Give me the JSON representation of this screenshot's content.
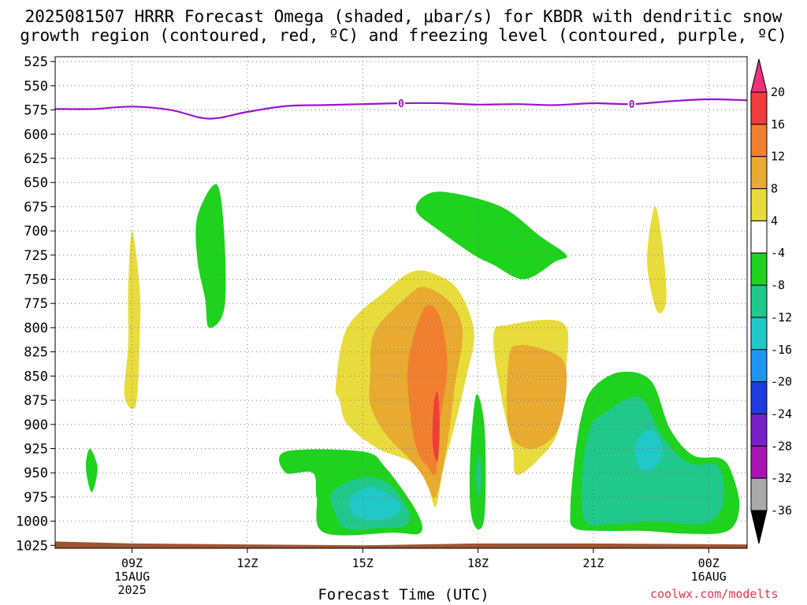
{
  "chart_data": {
    "type": "heatmap",
    "title_line1": "2025081507 HRRR Forecast Omega (shaded, μbar/s) for KBDR with dendritic snow",
    "title_line2": "growth region (contoured, red, ºC) and freezing level (contoured, purple, ºC)",
    "xlabel": "Forecast Time (UTC)",
    "credit": "coolwx.com/modelts",
    "x_range_hours": [
      7,
      25
    ],
    "y_range_hPa": [
      520,
      1028
    ],
    "y_ticks": [
      525,
      550,
      575,
      600,
      625,
      650,
      675,
      700,
      725,
      750,
      775,
      800,
      825,
      850,
      875,
      900,
      925,
      950,
      975,
      1000,
      1025
    ],
    "x_ticks": [
      {
        "hour": 9,
        "lines": [
          "09Z",
          "15AUG",
          "2025"
        ]
      },
      {
        "hour": 12,
        "lines": [
          "12Z"
        ]
      },
      {
        "hour": 15,
        "lines": [
          "15Z"
        ]
      },
      {
        "hour": 18,
        "lines": [
          "18Z"
        ]
      },
      {
        "hour": 21,
        "lines": [
          "21Z"
        ]
      },
      {
        "hour": 24,
        "lines": [
          "00Z",
          "16AUG"
        ]
      }
    ],
    "colorbar": {
      "labels": [
        "20",
        "16",
        "12",
        "8",
        "4",
        "-4",
        "-8",
        "-12",
        "-16",
        "-20",
        "-24",
        "-28",
        "-32",
        "-36"
      ],
      "colors": [
        "#f0307a",
        "#f03c3c",
        "#f08030",
        "#e8aa30",
        "#e8dc3c",
        "#ffffff",
        "#1ed21e",
        "#20c88c",
        "#20c8c8",
        "#1e96f0",
        "#1e3cdc",
        "#7820c8",
        "#aa14b4",
        "#aaaaaa",
        "#000000"
      ]
    },
    "legend_placement": "right",
    "grid": true,
    "colors": {
      "freezing_level": "#9a14c8",
      "ground": "#a0522d",
      "up_4_8": "#e8dc3c",
      "up_8_12": "#e8aa30",
      "up_12_16": "#f08030",
      "up_16_20": "#f03c3c",
      "down_4_8": "#1ed21e",
      "down_8_12": "#20c88c",
      "down_12_16": "#20c8c8"
    },
    "freezing_level": {
      "label": "0",
      "points": [
        [
          7,
          574
        ],
        [
          8,
          574
        ],
        [
          9,
          571.5
        ],
        [
          10,
          575
        ],
        [
          11,
          584
        ],
        [
          12,
          577
        ],
        [
          13,
          571
        ],
        [
          14,
          570
        ],
        [
          15,
          569
        ],
        [
          16,
          568
        ],
        [
          17,
          568
        ],
        [
          18,
          569.5
        ],
        [
          19,
          569
        ],
        [
          20,
          570
        ],
        [
          21,
          568
        ],
        [
          22,
          569
        ],
        [
          23,
          566
        ],
        [
          24,
          564
        ],
        [
          25,
          565
        ]
      ],
      "label_hours": [
        16,
        22
      ]
    },
    "ground_hPa": [
      [
        7,
        1021
      ],
      [
        9,
        1023
      ],
      [
        12,
        1024
      ],
      [
        15,
        1025
      ],
      [
        18,
        1023
      ],
      [
        21,
        1023
      ],
      [
        25,
        1024
      ]
    ],
    "regions": [
      {
        "name": "up-09z",
        "color_key": "up_4_8",
        "points": [
          [
            8.8,
            870
          ],
          [
            8.9,
            818
          ],
          [
            8.9,
            760
          ],
          [
            9.0,
            700
          ],
          [
            9.2,
            760
          ],
          [
            9.2,
            810
          ],
          [
            9.1,
            880
          ]
        ]
      },
      {
        "name": "down-11z",
        "color_key": "down_4_8",
        "points": [
          [
            10.7,
            685
          ],
          [
            11.2,
            652
          ],
          [
            11.4,
            705
          ],
          [
            11.4,
            780
          ],
          [
            11.0,
            800
          ],
          [
            10.9,
            770
          ],
          [
            10.7,
            730
          ]
        ]
      },
      {
        "name": "down-8z",
        "color_key": "down_4_8",
        "points": [
          [
            7.9,
            925
          ],
          [
            8.1,
            945
          ],
          [
            7.95,
            970
          ],
          [
            7.8,
            945
          ]
        ]
      },
      {
        "name": "down-15z-outer",
        "color_key": "down_4_8",
        "points": [
          [
            13.0,
            928
          ],
          [
            15.0,
            928
          ],
          [
            15.6,
            945
          ],
          [
            16.4,
            990
          ],
          [
            16.5,
            1012
          ],
          [
            15.8,
            1012
          ],
          [
            14.0,
            1012
          ],
          [
            13.8,
            975
          ],
          [
            13.7,
            950
          ],
          [
            13.0,
            950
          ]
        ]
      },
      {
        "name": "down-15z-mid",
        "color_key": "down_8_12",
        "points": [
          [
            14.2,
            970
          ],
          [
            15.0,
            955
          ],
          [
            15.7,
            962
          ],
          [
            16.2,
            990
          ],
          [
            16.1,
            1005
          ],
          [
            15.5,
            1007
          ],
          [
            14.6,
            1008
          ],
          [
            14.3,
            993
          ]
        ]
      },
      {
        "name": "down-15z-core",
        "color_key": "down_12_16",
        "points": [
          [
            14.7,
            975
          ],
          [
            15.2,
            965
          ],
          [
            15.8,
            975
          ],
          [
            16.0,
            988
          ],
          [
            15.6,
            998
          ],
          [
            15.0,
            998
          ],
          [
            14.7,
            990
          ]
        ]
      },
      {
        "name": "up-17z-outer",
        "color_key": "up_4_8",
        "points": [
          [
            14.3,
            860
          ],
          [
            14.6,
            800
          ],
          [
            15.6,
            762
          ],
          [
            16.3,
            742
          ],
          [
            16.9,
            745
          ],
          [
            17.5,
            762
          ],
          [
            17.9,
            805
          ],
          [
            17.7,
            850
          ],
          [
            17.4,
            900
          ],
          [
            17.1,
            945
          ],
          [
            16.9,
            985
          ],
          [
            16.7,
            965
          ],
          [
            16.3,
            940
          ],
          [
            15.4,
            925
          ],
          [
            14.6,
            900
          ],
          [
            14.4,
            875
          ]
        ]
      },
      {
        "name": "up-17z-mid",
        "color_key": "up_8_12",
        "points": [
          [
            15.2,
            850
          ],
          [
            15.3,
            805
          ],
          [
            16.1,
            770
          ],
          [
            16.6,
            758
          ],
          [
            17.3,
            775
          ],
          [
            17.6,
            805
          ],
          [
            17.4,
            860
          ],
          [
            17.2,
            920
          ],
          [
            16.9,
            975
          ],
          [
            16.6,
            955
          ],
          [
            16.2,
            935
          ],
          [
            15.6,
            910
          ],
          [
            15.2,
            880
          ]
        ]
      },
      {
        "name": "up-17z-inner",
        "color_key": "up_12_16",
        "points": [
          [
            16.2,
            832
          ],
          [
            16.6,
            780
          ],
          [
            17.0,
            788
          ],
          [
            17.2,
            840
          ],
          [
            17.0,
            900
          ],
          [
            16.9,
            950
          ],
          [
            16.7,
            944
          ],
          [
            16.4,
            925
          ],
          [
            16.2,
            875
          ]
        ]
      },
      {
        "name": "up-17z-core",
        "color_key": "up_16_20",
        "points": [
          [
            16.85,
            880
          ],
          [
            16.95,
            867
          ],
          [
            17.0,
            900
          ],
          [
            16.95,
            938
          ],
          [
            16.82,
            920
          ]
        ]
      },
      {
        "name": "down-18z-outer",
        "color_key": "down_4_8",
        "points": [
          [
            17.8,
            930
          ],
          [
            17.95,
            870
          ],
          [
            18.15,
            895
          ],
          [
            18.2,
            950
          ],
          [
            18.15,
            1000
          ],
          [
            17.95,
            1007
          ],
          [
            17.8,
            985
          ]
        ]
      },
      {
        "name": "down-18z-core",
        "color_key": "down_8_12",
        "points": [
          [
            17.97,
            940
          ],
          [
            18.05,
            932
          ],
          [
            18.08,
            962
          ],
          [
            18.0,
            974
          ],
          [
            17.95,
            955
          ]
        ]
      },
      {
        "name": "up-19z-outer",
        "color_key": "up_4_8",
        "points": [
          [
            18.4,
            808
          ],
          [
            18.8,
            797
          ],
          [
            20.2,
            795
          ],
          [
            20.3,
            840
          ],
          [
            20.1,
            905
          ],
          [
            19.6,
            935
          ],
          [
            19.0,
            952
          ],
          [
            18.9,
            925
          ],
          [
            18.6,
            870
          ]
        ]
      },
      {
        "name": "up-19z-core",
        "color_key": "up_8_12",
        "points": [
          [
            18.8,
            832
          ],
          [
            19.1,
            818
          ],
          [
            20.0,
            827
          ],
          [
            20.3,
            845
          ],
          [
            20.2,
            890
          ],
          [
            19.9,
            915
          ],
          [
            19.3,
            925
          ],
          [
            18.8,
            905
          ]
        ]
      },
      {
        "name": "down-19z",
        "color_key": "down_4_8",
        "points": [
          [
            16.4,
            680
          ],
          [
            16.6,
            664
          ],
          [
            17.2,
            660
          ],
          [
            18.6,
            675
          ],
          [
            19.6,
            705
          ],
          [
            20.3,
            725
          ],
          [
            20.0,
            732
          ],
          [
            19.2,
            750
          ],
          [
            18.4,
            735
          ],
          [
            17.9,
            725
          ],
          [
            17.0,
            700
          ]
        ]
      },
      {
        "name": "up-22z",
        "color_key": "up_4_8",
        "points": [
          [
            22.4,
            725
          ],
          [
            22.6,
            675
          ],
          [
            22.8,
            715
          ],
          [
            22.9,
            770
          ],
          [
            22.7,
            785
          ],
          [
            22.5,
            762
          ]
        ]
      },
      {
        "name": "down-22z-outer",
        "color_key": "down_4_8",
        "points": [
          [
            20.4,
            990
          ],
          [
            20.5,
            940
          ],
          [
            20.7,
            890
          ],
          [
            21.0,
            862
          ],
          [
            21.7,
            846
          ],
          [
            22.5,
            855
          ],
          [
            23.0,
            905
          ],
          [
            23.6,
            932
          ],
          [
            24.3,
            935
          ],
          [
            24.6,
            950
          ],
          [
            24.8,
            985
          ],
          [
            24.5,
            1010
          ],
          [
            23.5,
            1013
          ],
          [
            22.3,
            1010
          ],
          [
            21.2,
            1010
          ],
          [
            20.5,
            1007
          ]
        ]
      },
      {
        "name": "down-22z-mid",
        "color_key": "down_8_12",
        "points": [
          [
            20.7,
            958
          ],
          [
            20.9,
            905
          ],
          [
            21.3,
            888
          ],
          [
            22.2,
            872
          ],
          [
            22.8,
            913
          ],
          [
            23.5,
            940
          ],
          [
            24.2,
            942
          ],
          [
            24.4,
            965
          ],
          [
            24.3,
            990
          ],
          [
            23.8,
            1003
          ],
          [
            22.6,
            1000
          ],
          [
            21.5,
            1003
          ],
          [
            20.8,
            1000
          ]
        ]
      },
      {
        "name": "down-22z-core",
        "color_key": "down_12_16",
        "points": [
          [
            22.1,
            920
          ],
          [
            22.5,
            905
          ],
          [
            22.8,
            925
          ],
          [
            22.6,
            945
          ],
          [
            22.2,
            945
          ]
        ]
      }
    ]
  }
}
